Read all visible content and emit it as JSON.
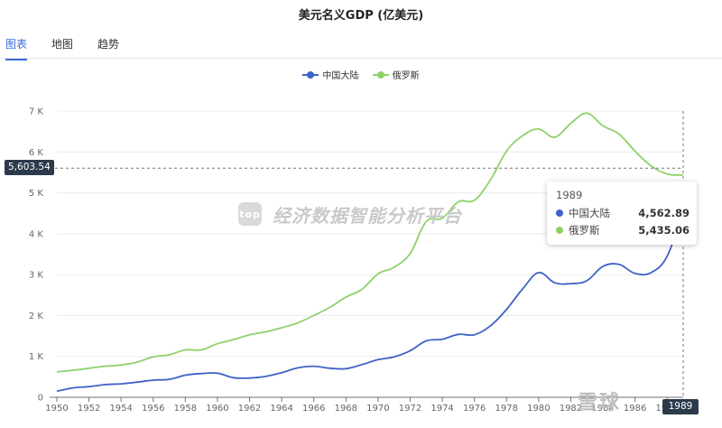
{
  "page": {
    "title": "美元名义GDP (亿美元)",
    "tabs": [
      {
        "label": "图表",
        "active": true
      },
      {
        "label": "地图",
        "active": false
      },
      {
        "label": "趋势",
        "active": false
      }
    ],
    "watermark": {
      "logo": "top",
      "text": "经济数据智能分析平台"
    },
    "corner_mark": "雪球 "
  },
  "tooltip": {
    "title": "1989",
    "rows": [
      {
        "name": "中国大陆",
        "value": "4,562.89",
        "color": "#3f63c8"
      },
      {
        "name": "俄罗斯",
        "value": "5,435.06",
        "color": "#8ed16b"
      }
    ]
  },
  "crosshair": {
    "y_label": "5,603.54",
    "y_value": 5603.54,
    "x_label": "1989"
  },
  "chart_data": {
    "type": "line",
    "title": "美元名义GDP (亿美元)",
    "xlabel": "",
    "ylabel": "",
    "xlim": [
      1950,
      1989
    ],
    "ylim": [
      0,
      7000
    ],
    "grid": true,
    "legend": "top-center",
    "x_tick_labels": [
      "1950",
      "1952",
      "1954",
      "1956",
      "1958",
      "1960",
      "1962",
      "1964",
      "1966",
      "1968",
      "1970",
      "1972",
      "1974",
      "1976",
      "1978",
      "1980",
      "1982",
      "1984",
      "1986",
      "1988"
    ],
    "y_ticks": [
      {
        "value": 0,
        "label": "0"
      },
      {
        "value": 1000,
        "label": "1 K"
      },
      {
        "value": 2000,
        "label": "2 K"
      },
      {
        "value": 3000,
        "label": "3 K"
      },
      {
        "value": 4000,
        "label": "4 K"
      },
      {
        "value": 5000,
        "label": "5 K"
      },
      {
        "value": 6000,
        "label": "6 K"
      },
      {
        "value": 7000,
        "label": "7 K"
      }
    ],
    "x": [
      1950,
      1951,
      1952,
      1953,
      1954,
      1955,
      1956,
      1957,
      1958,
      1959,
      1960,
      1961,
      1962,
      1963,
      1964,
      1965,
      1966,
      1967,
      1968,
      1969,
      1970,
      1971,
      1972,
      1973,
      1974,
      1975,
      1976,
      1977,
      1978,
      1979,
      1980,
      1981,
      1982,
      1983,
      1984,
      1985,
      1986,
      1987,
      1988,
      1989
    ],
    "series": [
      {
        "name": "中国大陆",
        "color": "#3f63c8",
        "values": [
          150,
          230,
          260,
          310,
          330,
          370,
          420,
          440,
          540,
          580,
          590,
          480,
          470,
          510,
          600,
          720,
          760,
          710,
          700,
          800,
          920,
          990,
          1140,
          1380,
          1420,
          1540,
          1530,
          1750,
          2150,
          2650,
          3050,
          2800,
          2780,
          2850,
          3200,
          3250,
          3030,
          3050,
          3450,
          4562.89
        ]
      },
      {
        "name": "俄罗斯",
        "color": "#8ed16b",
        "values": [
          620,
          660,
          710,
          760,
          790,
          860,
          990,
          1040,
          1160,
          1160,
          1310,
          1410,
          1530,
          1600,
          1700,
          1820,
          2000,
          2200,
          2450,
          2640,
          3020,
          3180,
          3520,
          4300,
          4380,
          4780,
          4820,
          5320,
          6020,
          6400,
          6560,
          6360,
          6700,
          6950,
          6640,
          6440,
          6020,
          5660,
          5460,
          5435.06
        ]
      }
    ]
  }
}
